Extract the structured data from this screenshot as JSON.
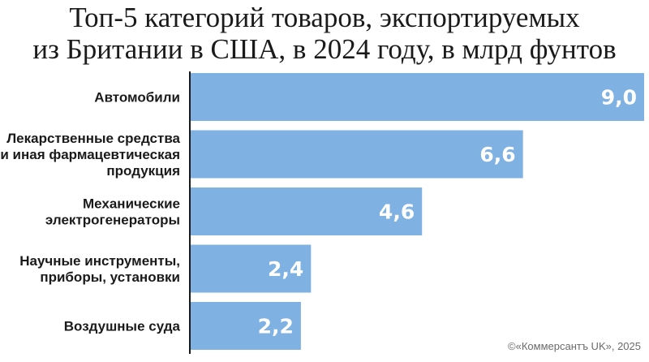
{
  "title_line1": "Топ-5 категорий товаров, экспортируемых",
  "title_line2": "из Британии в США, в 2024 году, в млрд фунтов",
  "credit": "©«Коммерсантъ UK», 2025",
  "colors": {
    "bar": "#7fb1e2",
    "axis": "#1a1a1a",
    "value_text": "#ffffff",
    "label_text": "#1a1a1a"
  },
  "chart_data": {
    "type": "bar",
    "orientation": "horizontal",
    "categories": [
      [
        "Автомобили"
      ],
      [
        "Лекарственные средства",
        "и иная фармацевтическая",
        "продукция"
      ],
      [
        "Механические",
        "электрогенераторы"
      ],
      [
        "Научные инструменты,",
        "приборы, установки"
      ],
      [
        "Воздушные суда"
      ]
    ],
    "values": [
      9.0,
      6.6,
      4.6,
      2.4,
      2.2
    ],
    "value_labels": [
      "9,0",
      "6,6",
      "4,6",
      "2,4",
      "2,2"
    ],
    "xlim": [
      0,
      9.0
    ],
    "grid": false
  }
}
